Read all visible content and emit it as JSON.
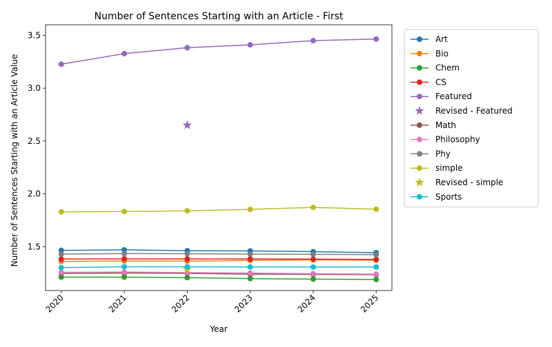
{
  "chart_data": {
    "type": "line",
    "title": "Number of Sentences Starting with an Article - First",
    "xlabel": "Year",
    "ylabel": "Number of Sentences Starting with an Article Value",
    "x": [
      2020,
      2021,
      2022,
      2023,
      2024,
      2025
    ],
    "xticks": [
      "2020",
      "2021",
      "2022",
      "2023",
      "2024",
      "2025"
    ],
    "ylim": [
      1.085,
      3.6
    ],
    "yticks": [
      "1.5",
      "2.0",
      "2.5",
      "3.0",
      "3.5"
    ],
    "grid": false,
    "legend_position": "outside-right",
    "series": [
      {
        "name": "Art",
        "kind": "line",
        "color": "#1f77b4",
        "values": [
          1.465,
          1.47,
          1.462,
          1.46,
          1.453,
          1.443
        ]
      },
      {
        "name": "Bio",
        "kind": "line",
        "color": "#ff7f0e",
        "values": [
          1.36,
          1.365,
          1.363,
          1.37,
          1.375,
          1.372
        ]
      },
      {
        "name": "Chem",
        "kind": "line",
        "color": "#2ca02c",
        "values": [
          1.212,
          1.212,
          1.207,
          1.198,
          1.193,
          1.19
        ]
      },
      {
        "name": "CS",
        "kind": "line",
        "color": "#d62728",
        "values": [
          1.383,
          1.385,
          1.384,
          1.384,
          1.382,
          1.38
        ]
      },
      {
        "name": "Featured",
        "kind": "line",
        "color": "#9467bd",
        "values": [
          3.227,
          3.327,
          3.383,
          3.41,
          3.45,
          3.465
        ]
      },
      {
        "name": "Revised - Featured",
        "kind": "star",
        "color": "#9467bd",
        "x": [
          2022
        ],
        "values": [
          2.65
        ]
      },
      {
        "name": "Math",
        "kind": "line",
        "color": "#8c564b",
        "values": [
          1.247,
          1.25,
          1.248,
          1.24,
          1.238,
          1.235
        ]
      },
      {
        "name": "Philosophy",
        "kind": "line",
        "color": "#e377c2",
        "values": [
          1.258,
          1.26,
          1.255,
          1.25,
          1.245,
          1.24
        ]
      },
      {
        "name": "Phy",
        "kind": "line",
        "color": "#7f7f7f",
        "values": [
          1.43,
          1.435,
          1.433,
          1.43,
          1.428,
          1.425
        ]
      },
      {
        "name": "simple",
        "kind": "line",
        "color": "#bcbd22",
        "values": [
          1.83,
          1.833,
          1.84,
          1.853,
          1.872,
          1.855
        ]
      },
      {
        "name": "Revised - simple",
        "kind": "star",
        "color": "#bcbd22",
        "x": [
          2022
        ],
        "values": [
          1.285
        ]
      },
      {
        "name": "Sports",
        "kind": "line",
        "color": "#17becf",
        "values": [
          1.302,
          1.31,
          1.31,
          1.308,
          1.307,
          1.308
        ]
      }
    ]
  }
}
